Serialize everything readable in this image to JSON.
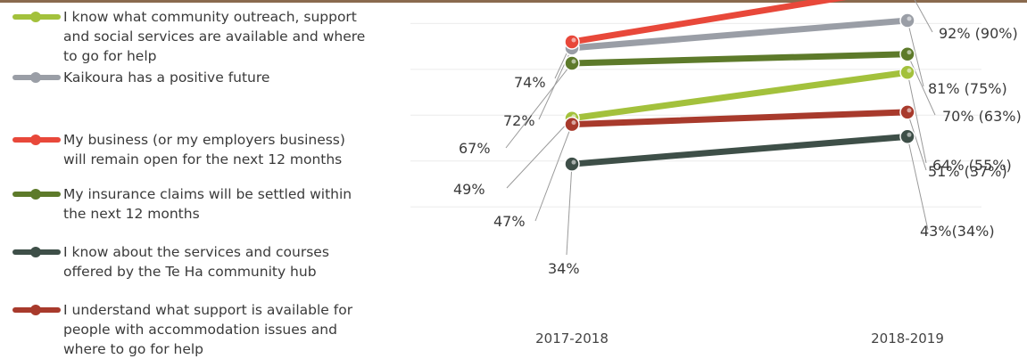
{
  "chart_data": {
    "type": "line",
    "categories": [
      "2017-2018",
      "2018-2019"
    ],
    "ylim": [
      25,
      100
    ],
    "grid": true,
    "legend_position": "left",
    "series": [
      {
        "name": "I know what community outreach, support and social services are available and where to go for help",
        "color": "#a3c13c",
        "values": [
          49,
          64
        ],
        "labels": [
          "49%",
          "64%  (55%)"
        ]
      },
      {
        "name": "Kaikoura has a positive future",
        "color": "#9a9ea6",
        "values": [
          72,
          81
        ],
        "labels": [
          "72%",
          "81% (75%)"
        ]
      },
      {
        "name": "My business (or my employers business) will remain open for the next 12 months",
        "color": "#e8483a",
        "values": [
          74,
          92
        ],
        "labels": [
          "74%",
          "92% (90%)"
        ]
      },
      {
        "name": "My insurance claims will be settled within the next 12 months",
        "color": "#5d7a2a",
        "values": [
          67,
          70
        ],
        "labels": [
          "67%",
          "70% (63%)"
        ]
      },
      {
        "name": "I know about the services and courses offered by the Te Ha community hub",
        "color": "#3e4f48",
        "values": [
          34,
          43
        ],
        "labels": [
          "34%",
          "43%(34%)"
        ]
      },
      {
        "name": "I understand what support is available for people with accommodation issues and where to go for help",
        "color": "#a83a2c",
        "values": [
          47,
          51
        ],
        "labels": [
          "47%",
          "51% (37%)"
        ]
      }
    ]
  }
}
